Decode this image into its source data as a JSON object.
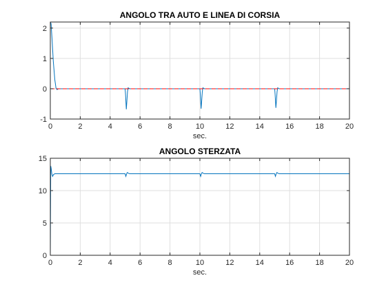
{
  "chart_data": [
    {
      "type": "line",
      "title": "ANGOLO TRA AUTO E LINEA DI CORSIA",
      "xlabel": "sec.",
      "ylabel": "",
      "xlim": [
        0,
        20
      ],
      "ylim": [
        -1,
        2.2
      ],
      "xticks": [
        0,
        2,
        4,
        6,
        8,
        10,
        12,
        14,
        16,
        18,
        20
      ],
      "yticks": [
        -1,
        0,
        1,
        2
      ],
      "grid": true,
      "series": [
        {
          "color": "#0072bd",
          "style": "solid",
          "x": [
            0,
            0.05,
            0.12,
            0.2,
            0.3,
            0.38,
            0.45,
            0.55,
            5.0,
            5.03,
            5.08,
            5.12,
            5.16,
            5.2,
            5.3,
            10.0,
            10.03,
            10.08,
            10.12,
            10.16,
            10.2,
            10.3,
            15.0,
            15.03,
            15.08,
            15.12,
            15.16,
            15.2,
            15.3,
            20
          ],
          "y": [
            2.2,
            2.15,
            1.6,
            0.9,
            0.3,
            0.02,
            -0.03,
            0,
            0,
            -0.2,
            -0.68,
            -0.4,
            -0.1,
            0.03,
            0,
            0,
            -0.2,
            -0.66,
            -0.4,
            -0.1,
            0.03,
            0,
            0,
            -0.2,
            -0.63,
            -0.38,
            -0.1,
            0.03,
            0,
            0
          ]
        },
        {
          "color": "#ff0000",
          "style": "dashed",
          "x": [
            0,
            20
          ],
          "y": [
            0,
            0
          ]
        }
      ]
    },
    {
      "type": "line",
      "title": "ANGOLO STERZATA",
      "xlabel": "sec.",
      "ylabel": "",
      "xlim": [
        0,
        20
      ],
      "ylim": [
        0,
        15
      ],
      "xticks": [
        0,
        2,
        4,
        6,
        8,
        10,
        12,
        14,
        16,
        18,
        20
      ],
      "yticks": [
        0,
        5,
        10,
        15
      ],
      "grid": true,
      "series": [
        {
          "color": "#0072bd",
          "style": "solid",
          "x": [
            0,
            0.01,
            0.03,
            0.06,
            0.1,
            0.15,
            0.22,
            0.3,
            5.0,
            5.05,
            5.1,
            5.15,
            5.2,
            5.3,
            10.0,
            10.05,
            10.1,
            10.15,
            10.2,
            10.3,
            15.0,
            15.05,
            15.1,
            15.15,
            15.2,
            15.3,
            20
          ],
          "y": [
            0,
            5,
            13.8,
            13.4,
            12.6,
            12.2,
            12.5,
            12.6,
            12.6,
            12.2,
            12.6,
            12.8,
            12.7,
            12.6,
            12.6,
            12.2,
            12.6,
            12.8,
            12.7,
            12.6,
            12.6,
            12.2,
            12.6,
            12.8,
            12.7,
            12.6,
            12.6
          ]
        },
        {
          "color": "#ff0000",
          "style": "dashed",
          "x": [
            0,
            20
          ],
          "y": [
            0,
            0
          ]
        }
      ]
    }
  ]
}
